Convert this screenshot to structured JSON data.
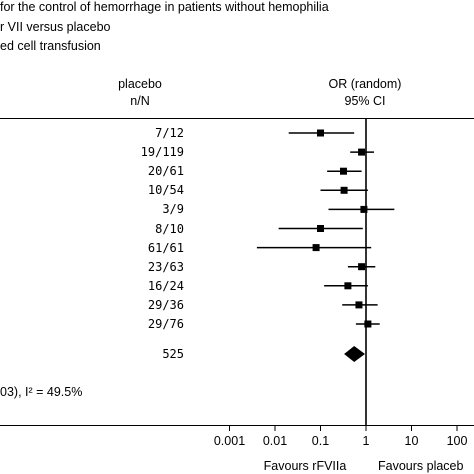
{
  "header": {
    "line1": "for the control of hemorrhage in patients without hemophilia",
    "line2": "r VII versus placebo",
    "line3": "ed cell transfusion"
  },
  "columns": {
    "placebo_title": "placebo",
    "placebo_sub": "n/N",
    "or_title": "OR (random)",
    "or_sub": "95% CI"
  },
  "heterogeneity": "03), I² = 49.5%",
  "chart_data": {
    "type": "forest",
    "x_scale": "log",
    "xlim": [
      0.0005,
      200
    ],
    "x_ticks": [
      "0.001",
      "0.01",
      "0.1",
      "1",
      "10",
      "100"
    ],
    "x_tick_values": [
      0.001,
      0.01,
      0.1,
      1,
      10,
      100
    ],
    "favours_left": "Favours rFVIIa",
    "favours_right": "Favours placeb",
    "reference_line": 1,
    "studies": [
      {
        "placebo": "7/12",
        "or": 0.1,
        "ci": [
          0.02,
          0.55
        ]
      },
      {
        "placebo": "19/119",
        "or": 0.8,
        "ci": [
          0.45,
          1.5
        ]
      },
      {
        "placebo": "20/61",
        "or": 0.32,
        "ci": [
          0.14,
          0.8
        ]
      },
      {
        "placebo": "10/54",
        "or": 0.33,
        "ci": [
          0.1,
          1.1
        ]
      },
      {
        "placebo": "3/9",
        "or": 0.9,
        "ci": [
          0.15,
          4.2
        ]
      },
      {
        "placebo": "8/10",
        "or": 0.1,
        "ci": [
          0.012,
          0.85
        ]
      },
      {
        "placebo": "61/61",
        "or": 0.08,
        "ci": [
          0.004,
          1.3
        ]
      },
      {
        "placebo": "23/63",
        "or": 0.8,
        "ci": [
          0.4,
          1.6
        ]
      },
      {
        "placebo": "16/24",
        "or": 0.4,
        "ci": [
          0.12,
          1.1
        ]
      },
      {
        "placebo": "29/36",
        "or": 0.7,
        "ci": [
          0.3,
          1.8
        ]
      },
      {
        "placebo": "29/76",
        "or": 1.1,
        "ci": [
          0.6,
          2.0
        ]
      }
    ],
    "total": {
      "placebo": "525",
      "or": 0.55,
      "ci": [
        0.33,
        0.95
      ]
    }
  }
}
